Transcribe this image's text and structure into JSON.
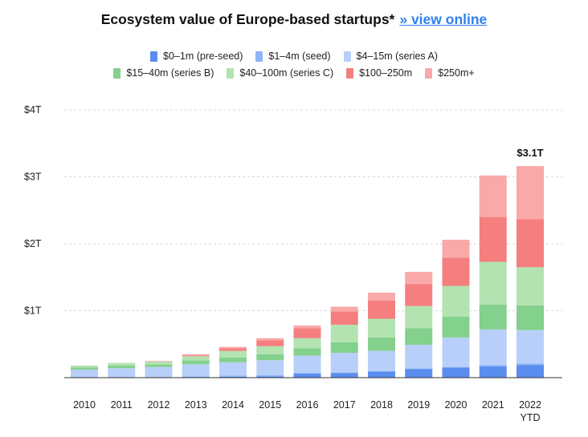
{
  "header": {
    "title": "Ecosystem value of Europe-based startups*",
    "link_text": "» view online"
  },
  "chart_data": {
    "type": "bar",
    "stacked": true,
    "title": "Ecosystem value of Europe-based startups*",
    "categories": [
      "2010",
      "2011",
      "2012",
      "2013",
      "2014",
      "2015",
      "2016",
      "2017",
      "2018",
      "2019",
      "2020",
      "2021",
      "2022\nYTD"
    ],
    "category_lines": [
      [
        "2010"
      ],
      [
        "2011"
      ],
      [
        "2012"
      ],
      [
        "2013"
      ],
      [
        "2014"
      ],
      [
        "2015"
      ],
      [
        "2016"
      ],
      [
        "2017"
      ],
      [
        "2018"
      ],
      [
        "2019"
      ],
      [
        "2020"
      ],
      [
        "2021"
      ],
      [
        "2022",
        "YTD"
      ]
    ],
    "yticks": [
      {
        "value": 1,
        "label": "$1T"
      },
      {
        "value": 2,
        "label": "$2T"
      },
      {
        "value": 3,
        "label": "$3T"
      },
      {
        "value": 4,
        "label": "$4T"
      }
    ],
    "ylim": [
      0,
      4
    ],
    "grid": true,
    "legend_position": "top",
    "annotations": [
      {
        "category_index": 12,
        "text": "$3.1T"
      }
    ],
    "series": [
      {
        "name": "$0–1m (pre-seed)",
        "color": "#5b8def",
        "values": [
          0.005,
          0.005,
          0.005,
          0.01,
          0.015,
          0.02,
          0.06,
          0.07,
          0.09,
          0.13,
          0.15,
          0.17,
          0.19
        ]
      },
      {
        "name": "$1–4m (seed)",
        "color": "#8eb4f7",
        "values": [
          0.005,
          0.005,
          0.005,
          0.01,
          0.015,
          0.02,
          0.01,
          0.01,
          0.01,
          0.01,
          0.01,
          0.02,
          0.02
        ]
      },
      {
        "name": "$4–15m (series A)",
        "color": "#b8cff9",
        "values": [
          0.11,
          0.13,
          0.15,
          0.18,
          0.2,
          0.22,
          0.26,
          0.29,
          0.3,
          0.35,
          0.44,
          0.53,
          0.5
        ]
      },
      {
        "name": "$15–40m (series B)",
        "color": "#84d08d",
        "values": [
          0.03,
          0.04,
          0.04,
          0.06,
          0.07,
          0.09,
          0.11,
          0.16,
          0.2,
          0.25,
          0.31,
          0.37,
          0.37
        ]
      },
      {
        "name": "$40–100m (series C)",
        "color": "#b2e3b1",
        "values": [
          0.03,
          0.04,
          0.04,
          0.06,
          0.1,
          0.12,
          0.15,
          0.26,
          0.28,
          0.33,
          0.46,
          0.64,
          0.57
        ]
      },
      {
        "name": "$100–250m",
        "color": "#f57f7f",
        "values": [
          0,
          0,
          0,
          0.01,
          0.04,
          0.09,
          0.15,
          0.2,
          0.27,
          0.33,
          0.42,
          0.67,
          0.72
        ]
      },
      {
        "name": "$250m+",
        "color": "#f9a9a9",
        "values": [
          0,
          0,
          0.01,
          0.02,
          0.02,
          0.03,
          0.04,
          0.07,
          0.12,
          0.18,
          0.27,
          0.62,
          0.79
        ]
      }
    ]
  }
}
